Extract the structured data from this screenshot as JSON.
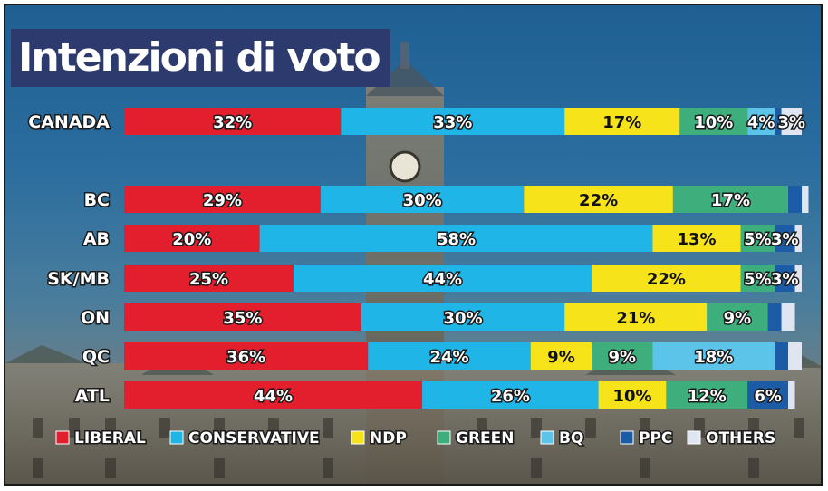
{
  "chart_data": {
    "type": "bar",
    "orientation": "horizontal",
    "stacked": true,
    "title": "Intenzioni di voto",
    "value_suffix": "%",
    "categories": [
      "CANADA",
      "BC",
      "AB",
      "SK/MB",
      "ON",
      "QC",
      "ATL"
    ],
    "series": [
      {
        "name": "LIBERAL",
        "color": "#e31e2d",
        "values": [
          32,
          29,
          20,
          25,
          35,
          36,
          44
        ]
      },
      {
        "name": "CONSERVATIVE",
        "color": "#1fb5e6",
        "values": [
          33,
          30,
          58,
          44,
          30,
          24,
          26
        ]
      },
      {
        "name": "NDP",
        "color": "#f7e31a",
        "values": [
          17,
          22,
          13,
          22,
          21,
          9,
          10
        ]
      },
      {
        "name": "GREEN",
        "color": "#3fae7d",
        "values": [
          10,
          17,
          5,
          5,
          9,
          9,
          12
        ]
      },
      {
        "name": "BQ",
        "color": "#5cc4e8",
        "values": [
          4,
          0,
          0,
          0,
          0,
          18,
          0
        ]
      },
      {
        "name": "PPC",
        "color": "#1c5ca6",
        "values": [
          1,
          2,
          3,
          3,
          2,
          2,
          6
        ]
      },
      {
        "name": "OTHERS",
        "color": "#dfe6f2",
        "values": [
          3,
          1,
          1,
          1,
          2,
          2,
          1
        ]
      }
    ],
    "xlim": [
      0,
      100
    ],
    "legend": "bottom",
    "grid": false
  }
}
